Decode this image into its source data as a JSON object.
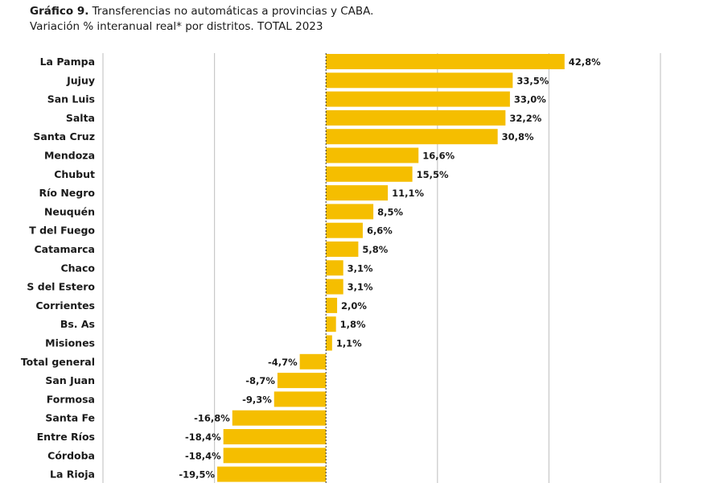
{
  "chart_data": {
    "type": "bar",
    "orientation": "horizontal",
    "title_bold": "Gráfico 9.",
    "title": "Transferencias no automáticas a provincias y CABA.",
    "subtitle": "Variación % interanual real* por distritos. TOTAL 2023",
    "categories": [
      "La Pampa",
      "Jujuy",
      "San Luis",
      "Salta",
      "Santa Cruz",
      "Mendoza",
      "Chubut",
      "Río Negro",
      "Neuquén",
      "T del Fuego",
      "Catamarca",
      "Chaco",
      "S del Estero",
      "Corrientes",
      "Bs. As",
      "Misiones",
      "Total general",
      "San Juan",
      "Formosa",
      "Santa Fe",
      "Entre Ríos",
      "Córdoba",
      "La Rioja"
    ],
    "values": [
      42.8,
      33.5,
      33.0,
      32.2,
      30.8,
      16.6,
      15.5,
      11.1,
      8.5,
      6.6,
      5.8,
      3.1,
      3.1,
      2.0,
      1.8,
      1.1,
      -4.7,
      -8.7,
      -9.3,
      -16.8,
      -18.4,
      -18.4,
      -19.5
    ],
    "data_labels": [
      "42,8%",
      "33,5%",
      "33,0%",
      "32,2%",
      "30,8%",
      "16,6%",
      "15,5%",
      "11,1%",
      "8,5%",
      "6,6%",
      "5,8%",
      "3,1%",
      "3,1%",
      "2,0%",
      "1,8%",
      "1,1%",
      "-4,7%",
      "-8,7%",
      "-9,3%",
      "-16,8%",
      "-18,4%",
      "-18,4%",
      "-19,5%"
    ],
    "xlim": [
      -40,
      60
    ],
    "grid_step": 20,
    "grid": true,
    "zero_line": "dashed",
    "colors": {
      "bar": "#F5BE00",
      "grid": "#c8c8c8",
      "zero": "#333333"
    }
  }
}
